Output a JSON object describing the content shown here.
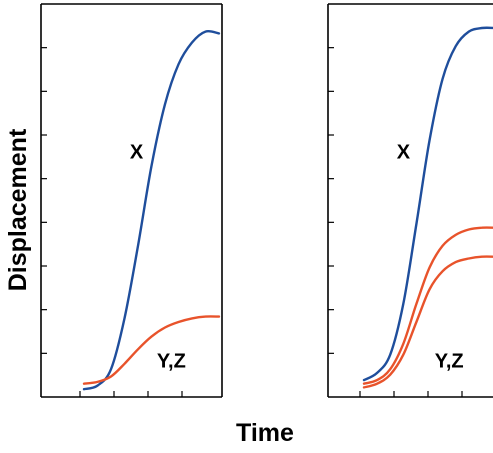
{
  "chart_data": [
    {
      "type": "line",
      "xlabel": "Time",
      "ylabel": "Displacement",
      "grid": false,
      "xlim": [
        0,
        10
      ],
      "ylim": [
        0,
        10
      ],
      "x_tick_count": 4,
      "y_tick_count": 8,
      "series": [
        {
          "name": "X",
          "color": "#1f4e9c",
          "x": [
            0,
            1,
            2,
            3,
            4,
            5,
            6,
            7,
            8,
            9,
            10
          ],
          "y": [
            0.05,
            0.15,
            0.6,
            2.0,
            4.0,
            6.2,
            7.9,
            9.0,
            9.6,
            9.9,
            9.85
          ]
        },
        {
          "name": "Y,Z",
          "color": "#e8532b",
          "x": [
            0,
            1,
            2,
            3,
            4,
            5,
            6,
            7,
            8,
            9,
            10
          ],
          "y": [
            0.2,
            0.25,
            0.4,
            0.75,
            1.15,
            1.5,
            1.75,
            1.9,
            2.0,
            2.05,
            2.05
          ]
        }
      ],
      "annotations": [
        {
          "text": "X",
          "x": 3.4,
          "y": 6.4
        },
        {
          "text": "Y,Z",
          "x": 5.4,
          "y": 0.65
        }
      ]
    },
    {
      "type": "line",
      "xlabel": "Time",
      "ylabel": "Displacement",
      "grid": false,
      "xlim": [
        0,
        10
      ],
      "ylim": [
        0,
        10
      ],
      "x_tick_count": 4,
      "y_tick_count": 8,
      "series": [
        {
          "name": "X",
          "color": "#1f4e9c",
          "x": [
            0,
            1,
            2,
            3,
            4,
            5,
            6,
            7,
            8,
            9,
            10
          ],
          "y": [
            0.3,
            0.5,
            1.0,
            2.4,
            4.6,
            6.9,
            8.6,
            9.5,
            9.9,
            10.0,
            10.0
          ]
        },
        {
          "name": "Y",
          "color": "#e8532b",
          "x": [
            0,
            1,
            2,
            3,
            4,
            5,
            6,
            7,
            8,
            9,
            10
          ],
          "y": [
            0.2,
            0.3,
            0.6,
            1.3,
            2.4,
            3.4,
            4.0,
            4.3,
            4.45,
            4.5,
            4.5
          ]
        },
        {
          "name": "Z",
          "color": "#e8532b",
          "x": [
            0,
            1,
            2,
            3,
            4,
            5,
            6,
            7,
            8,
            9,
            10
          ],
          "y": [
            0.1,
            0.2,
            0.45,
            1.0,
            1.9,
            2.8,
            3.3,
            3.55,
            3.65,
            3.7,
            3.7
          ]
        }
      ],
      "annotations": [
        {
          "text": "X",
          "x": 2.5,
          "y": 6.4
        },
        {
          "text": "Y,Z",
          "x": 5.4,
          "y": 0.65
        }
      ]
    }
  ],
  "shared_labels": {
    "ylabel": "Displacement",
    "xlabel": "Time"
  }
}
